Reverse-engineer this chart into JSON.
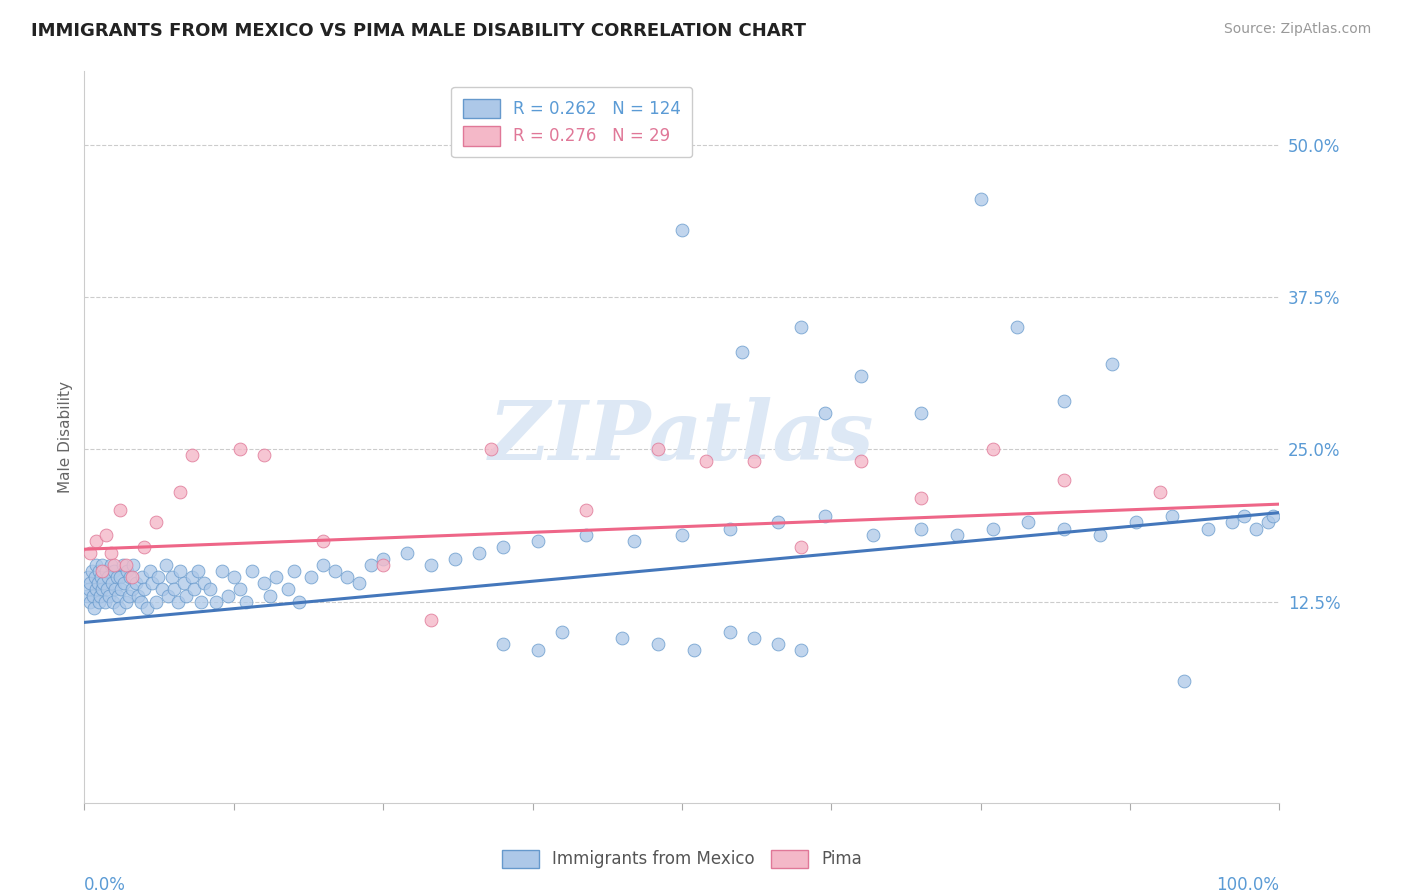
{
  "title": "IMMIGRANTS FROM MEXICO VS PIMA MALE DISABILITY CORRELATION CHART",
  "source": "Source: ZipAtlas.com",
  "ylabel": "Male Disability",
  "axis_label_color": "#5b9bd5",
  "blue_color": "#adc8e8",
  "blue_edge_color": "#6699cc",
  "pink_color": "#f4b8c8",
  "pink_edge_color": "#e07898",
  "blue_line_color": "#4477bb",
  "pink_line_color": "#ee6688",
  "watermark_text": "ZIPatlas",
  "watermark_color": "#dde8f5",
  "legend_blue_label": "Immigrants from Mexico",
  "legend_pink_label": "Pima",
  "blue_R": 0.262,
  "blue_N": 124,
  "pink_R": 0.276,
  "pink_N": 29,
  "blue_line_x0": 0.0,
  "blue_line_y0": 0.108,
  "blue_line_x1": 1.0,
  "blue_line_y1": 0.198,
  "pink_line_x0": 0.0,
  "pink_line_y0": 0.168,
  "pink_line_x1": 1.0,
  "pink_line_y1": 0.205,
  "xlim": [
    0.0,
    1.0
  ],
  "ylim": [
    -0.04,
    0.56
  ],
  "ytick_vals": [
    0.125,
    0.25,
    0.375,
    0.5
  ],
  "ytick_labels": [
    "12.5%",
    "25.0%",
    "37.5%",
    "50.0%"
  ],
  "blue_x": [
    0.002,
    0.003,
    0.004,
    0.005,
    0.005,
    0.006,
    0.007,
    0.008,
    0.009,
    0.01,
    0.01,
    0.011,
    0.012,
    0.012,
    0.013,
    0.014,
    0.015,
    0.015,
    0.016,
    0.017,
    0.018,
    0.019,
    0.02,
    0.021,
    0.022,
    0.023,
    0.024,
    0.025,
    0.026,
    0.027,
    0.028,
    0.029,
    0.03,
    0.031,
    0.032,
    0.033,
    0.035,
    0.036,
    0.037,
    0.038,
    0.04,
    0.041,
    0.043,
    0.045,
    0.047,
    0.048,
    0.05,
    0.052,
    0.055,
    0.057,
    0.06,
    0.062,
    0.065,
    0.068,
    0.07,
    0.073,
    0.075,
    0.078,
    0.08,
    0.083,
    0.085,
    0.09,
    0.092,
    0.095,
    0.098,
    0.1,
    0.105,
    0.11,
    0.115,
    0.12,
    0.125,
    0.13,
    0.135,
    0.14,
    0.15,
    0.155,
    0.16,
    0.17,
    0.175,
    0.18,
    0.19,
    0.2,
    0.21,
    0.22,
    0.23,
    0.24,
    0.25,
    0.27,
    0.29,
    0.31,
    0.33,
    0.35,
    0.38,
    0.42,
    0.46,
    0.5,
    0.54,
    0.58,
    0.62,
    0.66,
    0.7,
    0.73,
    0.76,
    0.79,
    0.82,
    0.85,
    0.88,
    0.91,
    0.94,
    0.96,
    0.97,
    0.98,
    0.99,
    0.995,
    0.35,
    0.38,
    0.4,
    0.45,
    0.48,
    0.51,
    0.54,
    0.56,
    0.58,
    0.6
  ],
  "blue_y": [
    0.13,
    0.145,
    0.135,
    0.14,
    0.125,
    0.15,
    0.13,
    0.12,
    0.145,
    0.135,
    0.155,
    0.14,
    0.125,
    0.15,
    0.13,
    0.145,
    0.135,
    0.155,
    0.14,
    0.125,
    0.15,
    0.135,
    0.145,
    0.13,
    0.155,
    0.14,
    0.125,
    0.15,
    0.135,
    0.145,
    0.13,
    0.12,
    0.145,
    0.135,
    0.155,
    0.14,
    0.125,
    0.15,
    0.13,
    0.145,
    0.135,
    0.155,
    0.14,
    0.13,
    0.125,
    0.145,
    0.135,
    0.12,
    0.15,
    0.14,
    0.125,
    0.145,
    0.135,
    0.155,
    0.13,
    0.145,
    0.135,
    0.125,
    0.15,
    0.14,
    0.13,
    0.145,
    0.135,
    0.15,
    0.125,
    0.14,
    0.135,
    0.125,
    0.15,
    0.13,
    0.145,
    0.135,
    0.125,
    0.15,
    0.14,
    0.13,
    0.145,
    0.135,
    0.15,
    0.125,
    0.145,
    0.155,
    0.15,
    0.145,
    0.14,
    0.155,
    0.16,
    0.165,
    0.155,
    0.16,
    0.165,
    0.17,
    0.175,
    0.18,
    0.175,
    0.18,
    0.185,
    0.19,
    0.195,
    0.18,
    0.185,
    0.18,
    0.185,
    0.19,
    0.185,
    0.18,
    0.19,
    0.195,
    0.185,
    0.19,
    0.195,
    0.185,
    0.19,
    0.195,
    0.09,
    0.085,
    0.1,
    0.095,
    0.09,
    0.085,
    0.1,
    0.095,
    0.09,
    0.085
  ],
  "blue_y_outliers_x": [
    0.5,
    0.55,
    0.6,
    0.62,
    0.65,
    0.7,
    0.75,
    0.78,
    0.82,
    0.86,
    0.92
  ],
  "blue_y_outliers_y": [
    0.43,
    0.33,
    0.35,
    0.28,
    0.31,
    0.28,
    0.455,
    0.35,
    0.29,
    0.32,
    0.06
  ],
  "pink_x": [
    0.005,
    0.01,
    0.015,
    0.018,
    0.022,
    0.025,
    0.03,
    0.035,
    0.04,
    0.05,
    0.06,
    0.08,
    0.09,
    0.13,
    0.15,
    0.2,
    0.25,
    0.29,
    0.34,
    0.42,
    0.48,
    0.52,
    0.56,
    0.6,
    0.65,
    0.7,
    0.76,
    0.82,
    0.9
  ],
  "pink_y": [
    0.165,
    0.175,
    0.15,
    0.18,
    0.165,
    0.155,
    0.2,
    0.155,
    0.145,
    0.17,
    0.19,
    0.215,
    0.245,
    0.25,
    0.245,
    0.175,
    0.155,
    0.11,
    0.25,
    0.2,
    0.25,
    0.24,
    0.24,
    0.17,
    0.24,
    0.21,
    0.25,
    0.225,
    0.215
  ]
}
